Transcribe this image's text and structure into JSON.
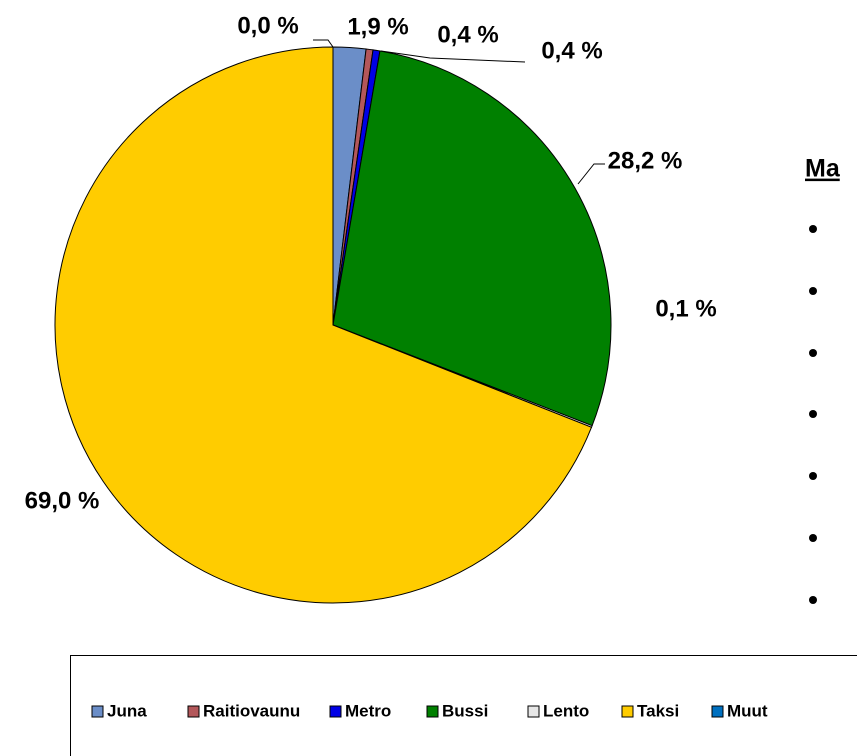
{
  "chart_data": {
    "type": "pie",
    "categories": [
      "Juna",
      "Raitiovaunu",
      "Metro",
      "Bussi",
      "Lento",
      "Taksi",
      "Muut"
    ],
    "values": [
      1.9,
      0.4,
      0.4,
      28.2,
      0.1,
      69.0,
      0.0
    ],
    "value_labels": [
      "1,9 %",
      "0,4 %",
      "0,4 %",
      "28,2 %",
      "0,1 %",
      "69,0 %",
      "0,0 %"
    ],
    "colors": [
      "#6b8ec8",
      "#b3575a",
      "#0000e6",
      "#008000",
      "#e6e6e6",
      "#ffcc00",
      "#0070c0"
    ],
    "side_title": "Ma",
    "legend": "bottom"
  }
}
